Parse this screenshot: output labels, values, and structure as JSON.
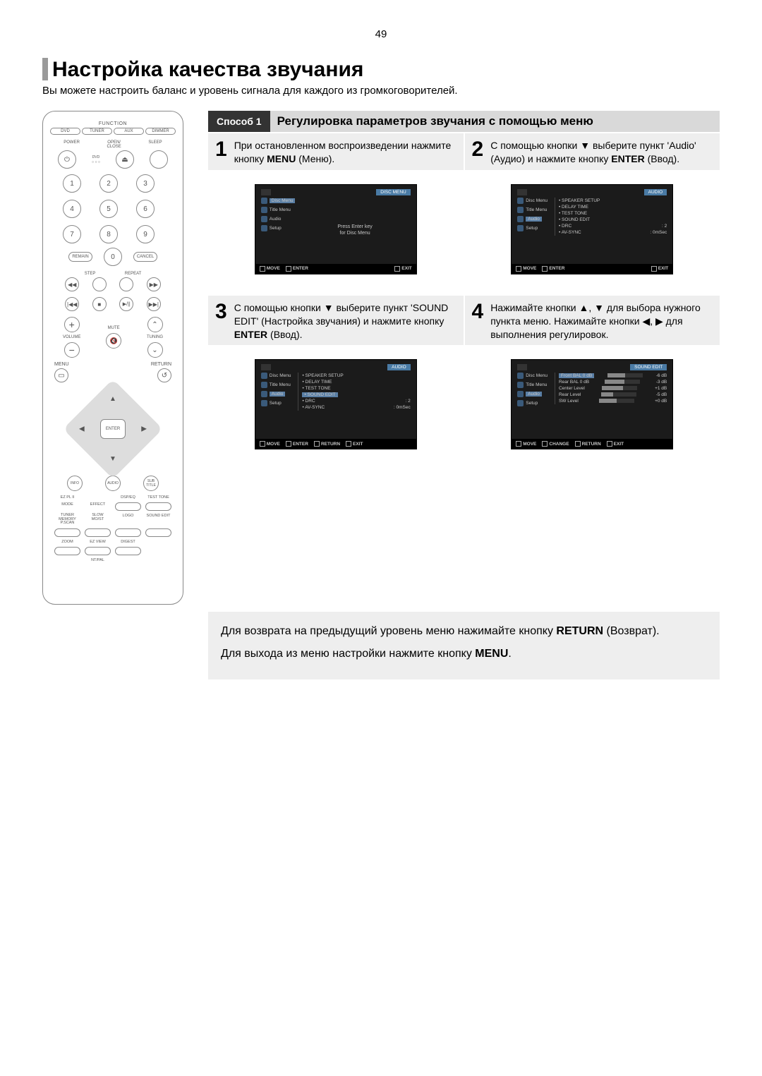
{
  "page_number": "49",
  "title": "Настройка качества звучания",
  "subtitle": "Вы можете настроить баланс и уровень сигнала для каждого из громкоговорителей.",
  "method": {
    "tag": "Способ 1",
    "title": "Регулировка параметров звучания с помощью меню"
  },
  "remote": {
    "function_label": "FUNCTION",
    "function_buttons": [
      "DVD",
      "TUNER",
      "AUX",
      "DIMMER"
    ],
    "row_power": [
      "POWER",
      "OPEN/\nCLOSE",
      "SLEEP"
    ],
    "numpad": [
      "1",
      "2",
      "3",
      "4",
      "5",
      "6",
      "7",
      "8",
      "9"
    ],
    "remain": "REMAIN",
    "zero": "0",
    "cancel": "CANCEL",
    "step": "STEP",
    "repeat": "REPEAT",
    "mute": "MUTE",
    "volume": "VOLUME",
    "tuning": "TUNING",
    "menu": "MENU",
    "return": "RETURN",
    "enter": "ENTER",
    "info": "INFO",
    "audio": "AUDIO",
    "subtitle_btn": "SUB\nTITLE",
    "row_labels_a": [
      "EZ PL II",
      "DSP/EQ",
      "TEST TONE"
    ],
    "row_labels_b": [
      "MODE",
      "EFFECT",
      "",
      ""
    ],
    "row_labels_c": [
      "TUNER\nMEMORY\nP.SCAN",
      "SLOW\nMO/ST",
      "LOGO",
      "SOUND EDIT"
    ],
    "row_labels_d": [
      "ZOOM",
      "EZ VIEW",
      "DIGEST",
      ""
    ],
    "row_labels_e": [
      "",
      "NT/PAL",
      "",
      ""
    ]
  },
  "steps": [
    {
      "num": "1",
      "text_parts": [
        "При остановленном воспроизведении нажмите кнопку ",
        "MENU",
        " (Меню)."
      ]
    },
    {
      "num": "2",
      "text_parts": [
        "С помощью кнопки ▼ выберите пункт 'Audio' (Аудио) и нажмите кнопку ",
        "ENTER",
        " (Ввод)."
      ]
    },
    {
      "num": "3",
      "text_parts": [
        "С помощью кнопки ▼ выберите пункт 'SOUND EDIT' (Настройка звучания) и нажмите кнопку ",
        "ENTER",
        " (Ввод)."
      ]
    },
    {
      "num": "4",
      "text_parts": [
        "Нажимайте кнопки ▲, ▼ для выбора нужного пункта меню. Нажимайте кнопки ◀, ▶ для выполнения регулировок.",
        "",
        ""
      ]
    }
  ],
  "tv_screens": {
    "common_left_items": [
      "Disc Menu",
      "Title Menu",
      "Audio",
      "Setup"
    ],
    "screen1": {
      "header_right": "DISC MENU",
      "center_line1": "Press Enter key",
      "center_line2": "for Disc Menu",
      "footer": [
        "MOVE",
        "ENTER",
        "EXIT"
      ]
    },
    "screen2": {
      "header_right": "AUDIO",
      "items": [
        [
          "SPEAKER SETUP",
          ""
        ],
        [
          "DELAY TIME",
          ""
        ],
        [
          "TEST TONE",
          ""
        ],
        [
          "SOUND EDIT",
          ""
        ],
        [
          "DRC",
          ": 2"
        ],
        [
          "AV-SYNC",
          ": 0mSec"
        ]
      ],
      "footer": [
        "MOVE",
        "ENTER",
        "EXIT"
      ]
    },
    "screen3": {
      "header_right": "AUDIO",
      "items": [
        [
          "SPEAKER SETUP",
          ""
        ],
        [
          "DELAY TIME",
          ""
        ],
        [
          "TEST TONE",
          ""
        ],
        [
          "SOUND EDIT",
          ""
        ],
        [
          "DRC",
          ": 2"
        ],
        [
          "AV-SYNC",
          ": 0mSec"
        ]
      ],
      "highlight_index": 3,
      "footer": [
        "MOVE",
        "ENTER",
        "RETURN",
        "EXIT"
      ]
    },
    "screen4": {
      "header_right": "SOUND EDIT",
      "sliders": [
        {
          "label": "Front BAL",
          "value_label": "0 dB",
          "db": "-6 dB",
          "fill": 50
        },
        {
          "label": "Rear BAL",
          "value_label": "0 dB",
          "db": "-3 dB",
          "fill": 55
        },
        {
          "label": "Center Level",
          "value_label": "",
          "db": "+1 dB",
          "fill": 60
        },
        {
          "label": "Rear Level",
          "value_label": "",
          "db": "-5 dB",
          "fill": 35
        },
        {
          "label": "SW Level",
          "value_label": "",
          "db": "+0 dB",
          "fill": 50
        }
      ],
      "highlight_index": 0,
      "footer": [
        "MOVE",
        "CHANGE",
        "RETURN",
        "EXIT"
      ]
    }
  },
  "footer_notes": {
    "line1_parts": [
      "Для возврата на предыдущий уровень меню нажимайте кнопку ",
      "RETURN",
      " (Возврат)."
    ],
    "line2_parts": [
      "Для выхода из меню настройки нажмите кнопку ",
      "MENU",
      "."
    ]
  },
  "colors": {
    "accent_bar": "#9a9a9a",
    "method_tag_bg": "#333333",
    "method_bg": "#d9d9d9",
    "step_bg": "#eeeeee",
    "tv_bg": "#1b1b1b",
    "tv_chip": "#4a7ba5"
  }
}
